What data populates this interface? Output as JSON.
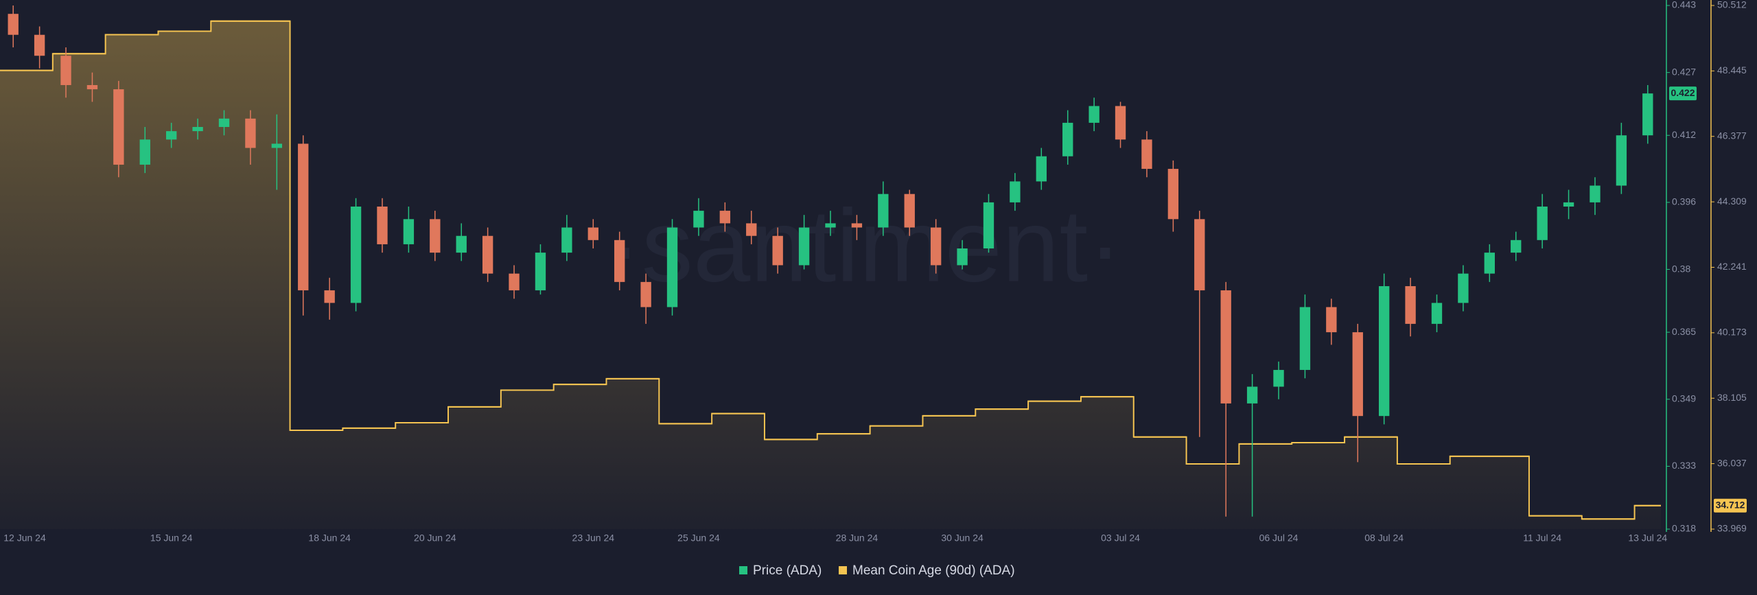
{
  "chart_data": {
    "type": "candlestick",
    "watermark": "·santiment·",
    "x": [
      "12 Jun 24",
      null,
      null,
      null,
      null,
      null,
      "15 Jun 24",
      null,
      null,
      null,
      null,
      null,
      "18 Jun 24",
      null,
      null,
      null,
      "20 Jun 24",
      null,
      null,
      null,
      null,
      null,
      "23 Jun 24",
      null,
      null,
      null,
      "25 Jun 24",
      null,
      null,
      null,
      null,
      null,
      "28 Jun 24",
      null,
      null,
      null,
      "30 Jun 24",
      null,
      null,
      null,
      null,
      null,
      "03 Jul 24",
      null,
      null,
      null,
      null,
      null,
      "06 Jul 24",
      null,
      null,
      null,
      "08 Jul 24",
      null,
      null,
      null,
      null,
      null,
      "11 Jul 24",
      null,
      null,
      null,
      "13 Jul 24"
    ],
    "series": [
      {
        "name": "Price (ADA)",
        "type": "candlestick",
        "color": "#26c281",
        "down_color": "#e0785c",
        "last_value": 0.422,
        "open": [
          0.441,
          0.436,
          0.431,
          0.424,
          0.423,
          0.405,
          0.411,
          0.413,
          0.414,
          0.416,
          0.409,
          0.41,
          0.375,
          0.372,
          0.395,
          0.386,
          0.392,
          0.384,
          0.388,
          0.379,
          0.375,
          0.384,
          0.39,
          0.387,
          0.377,
          0.371,
          0.39,
          0.394,
          0.391,
          0.388,
          0.381,
          0.39,
          0.391,
          0.39,
          0.398,
          0.39,
          0.381,
          0.385,
          0.396,
          0.401,
          0.407,
          0.415,
          0.419,
          0.411,
          0.404,
          0.392,
          0.375,
          0.348,
          0.352,
          0.356,
          0.371,
          0.365,
          0.345,
          0.376,
          0.367,
          0.372,
          0.379,
          0.384,
          0.387,
          0.395,
          0.396,
          0.4,
          0.412
        ],
        "high": [
          0.443,
          0.438,
          0.433,
          0.427,
          0.425,
          0.414,
          0.415,
          0.416,
          0.418,
          0.418,
          0.417,
          0.412,
          0.378,
          0.397,
          0.397,
          0.395,
          0.394,
          0.391,
          0.39,
          0.381,
          0.386,
          0.393,
          0.392,
          0.389,
          0.379,
          0.392,
          0.397,
          0.396,
          0.394,
          0.39,
          0.393,
          0.394,
          0.393,
          0.401,
          0.399,
          0.392,
          0.387,
          0.398,
          0.403,
          0.409,
          0.418,
          0.421,
          0.42,
          0.413,
          0.406,
          0.394,
          0.377,
          0.355,
          0.358,
          0.374,
          0.373,
          0.367,
          0.379,
          0.378,
          0.374,
          0.381,
          0.386,
          0.389,
          0.398,
          0.399,
          0.402,
          0.415,
          0.424
        ],
        "low": [
          0.433,
          0.428,
          0.421,
          0.42,
          0.402,
          0.403,
          0.409,
          0.411,
          0.412,
          0.405,
          0.399,
          0.369,
          0.368,
          0.37,
          0.384,
          0.384,
          0.382,
          0.382,
          0.377,
          0.373,
          0.374,
          0.382,
          0.385,
          0.375,
          0.367,
          0.369,
          0.388,
          0.389,
          0.386,
          0.379,
          0.38,
          0.388,
          0.387,
          0.388,
          0.388,
          0.379,
          0.38,
          0.384,
          0.394,
          0.399,
          0.405,
          0.413,
          0.409,
          0.402,
          0.389,
          0.34,
          0.321,
          0.321,
          0.349,
          0.354,
          0.362,
          0.334,
          0.343,
          0.364,
          0.365,
          0.37,
          0.377,
          0.382,
          0.385,
          0.392,
          0.393,
          0.398,
          0.41
        ],
        "close": [
          0.436,
          0.431,
          0.424,
          0.423,
          0.405,
          0.411,
          0.413,
          0.414,
          0.416,
          0.409,
          0.41,
          0.375,
          0.372,
          0.395,
          0.386,
          0.392,
          0.384,
          0.388,
          0.379,
          0.375,
          0.384,
          0.39,
          0.387,
          0.377,
          0.371,
          0.39,
          0.394,
          0.391,
          0.388,
          0.381,
          0.39,
          0.391,
          0.39,
          0.398,
          0.39,
          0.381,
          0.385,
          0.396,
          0.401,
          0.407,
          0.415,
          0.419,
          0.411,
          0.404,
          0.392,
          0.375,
          0.348,
          0.352,
          0.356,
          0.371,
          0.365,
          0.345,
          0.376,
          0.367,
          0.372,
          0.379,
          0.384,
          0.387,
          0.395,
          0.396,
          0.4,
          0.412,
          0.422
        ]
      },
      {
        "name": "Mean Coin Age (90d) (ADA)",
        "type": "step",
        "color": "#f5c451",
        "axis": "y2",
        "last_value": 34.712,
        "values": [
          48.46,
          48.46,
          48.99,
          48.99,
          49.59,
          49.59,
          49.7,
          49.7,
          50.02,
          50.02,
          50.02,
          37.09,
          37.09,
          37.16,
          37.16,
          37.33,
          37.33,
          37.83,
          37.83,
          38.36,
          38.36,
          38.54,
          38.54,
          38.72,
          38.72,
          37.3,
          37.3,
          37.62,
          37.62,
          36.8,
          36.8,
          36.98,
          36.98,
          37.23,
          37.23,
          37.55,
          37.55,
          37.76,
          37.76,
          38.01,
          38.01,
          38.15,
          38.15,
          36.88,
          36.88,
          36.03,
          36.03,
          36.66,
          36.66,
          36.7,
          36.7,
          36.88,
          36.88,
          36.03,
          36.03,
          36.27,
          36.27,
          36.27,
          34.39,
          34.39,
          34.29,
          34.29,
          34.712
        ]
      }
    ],
    "ylim": [
      0.318,
      0.443
    ],
    "yticks": [
      0.318,
      0.333,
      0.349,
      0.365,
      0.38,
      0.396,
      0.412,
      0.427,
      0.443
    ],
    "y2lim": [
      33.969,
      50.512
    ],
    "y2ticks": [
      33.969,
      36.037,
      38.105,
      40.173,
      42.241,
      44.309,
      46.377,
      48.445,
      50.512
    ]
  }
}
